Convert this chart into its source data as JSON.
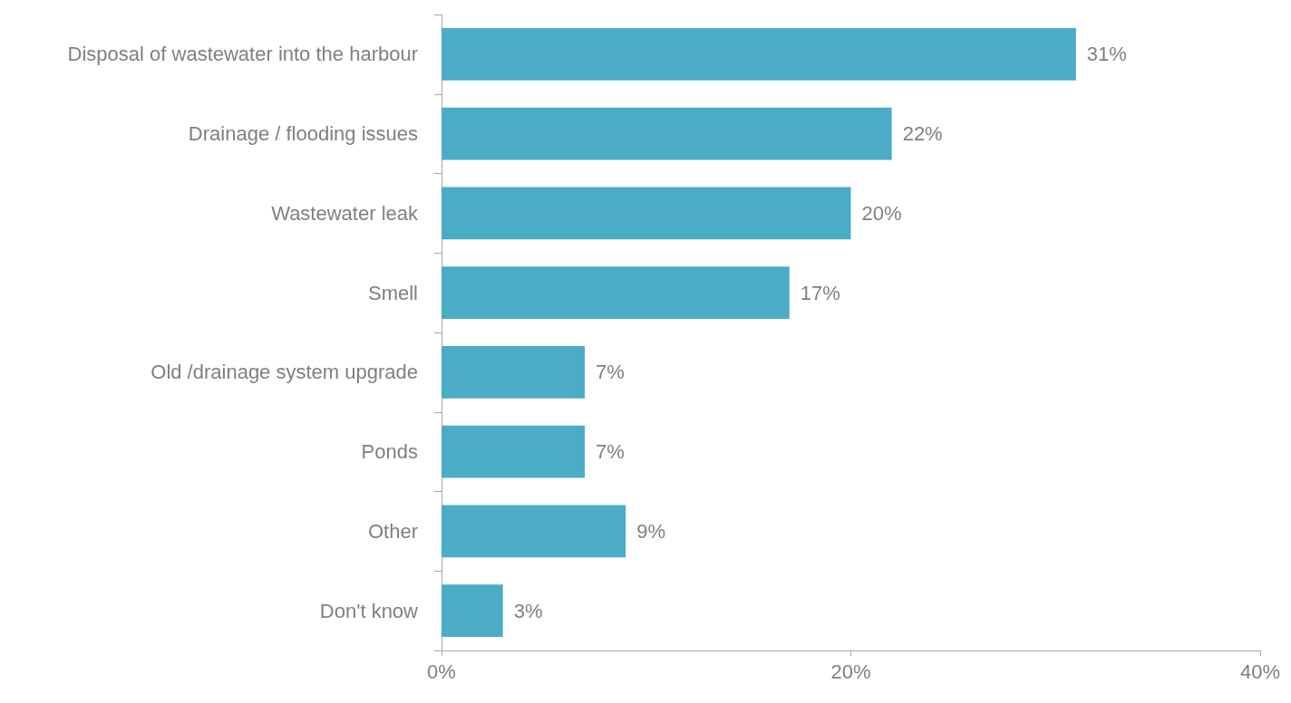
{
  "chart_data": {
    "type": "bar",
    "orientation": "horizontal",
    "categories": [
      "Disposal of wastewater into the harbour",
      "Drainage / flooding issues",
      "Wastewater leak",
      "Smell",
      "Old /drainage system upgrade",
      "Ponds",
      "Other",
      "Don't know"
    ],
    "values": [
      31,
      22,
      20,
      17,
      7,
      7,
      9,
      3
    ],
    "value_labels": [
      "31%",
      "22%",
      "20%",
      "17%",
      "7%",
      "7%",
      "9%",
      "3%"
    ],
    "color": "#4bacc6",
    "xlim": [
      0,
      40
    ],
    "xticks": [
      {
        "value": 0,
        "label": "0%"
      },
      {
        "value": 20,
        "label": "20%"
      },
      {
        "value": 40,
        "label": "40%"
      }
    ],
    "grid": false
  }
}
